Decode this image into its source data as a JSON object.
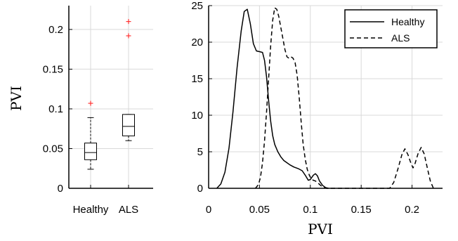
{
  "chart_data": [
    {
      "type": "box",
      "ylabel": "PVI",
      "ylim": [
        0,
        0.23
      ],
      "yticks": [
        0,
        0.05,
        0.1,
        0.15,
        0.2
      ],
      "ytick_labels": [
        "0",
        "0.05",
        "0.1",
        "0.15",
        "0.2"
      ],
      "grid": true,
      "outlier_color": "#ff3333",
      "categories": [
        "Healthy",
        "ALS"
      ],
      "boxes": [
        {
          "name": "Healthy",
          "whisker_low": 0.024,
          "q1": 0.036,
          "median": 0.045,
          "q3": 0.057,
          "whisker_high": 0.089,
          "outliers": [
            0.107
          ]
        },
        {
          "name": "ALS",
          "whisker_low": 0.06,
          "q1": 0.066,
          "median": 0.078,
          "q3": 0.093,
          "whisker_high": 0.093,
          "outliers": [
            0.192,
            0.21
          ]
        }
      ]
    },
    {
      "type": "line",
      "xlabel": "PVI",
      "ylabel": "",
      "xlim": [
        0,
        0.23
      ],
      "ylim": [
        0,
        25
      ],
      "xticks": [
        0,
        0.05,
        0.1,
        0.15,
        0.2
      ],
      "xtick_labels": [
        "0",
        "0.05",
        "0.1",
        "0.15",
        "0.2"
      ],
      "yticks": [
        0,
        5,
        10,
        15,
        20,
        25
      ],
      "ytick_labels": [
        "0",
        "5",
        "10",
        "15",
        "20",
        "25"
      ],
      "grid": true,
      "legend_position": "top-right",
      "series": [
        {
          "name": "Healthy",
          "style": "solid",
          "x": [
            0.008,
            0.012,
            0.016,
            0.02,
            0.024,
            0.028,
            0.032,
            0.035,
            0.038,
            0.041,
            0.044,
            0.047,
            0.05,
            0.053,
            0.055,
            0.057,
            0.059,
            0.061,
            0.063,
            0.065,
            0.068,
            0.071,
            0.074,
            0.077,
            0.08,
            0.084,
            0.088,
            0.092,
            0.095,
            0.098,
            0.1,
            0.103,
            0.105,
            0.107,
            0.109,
            0.112,
            0.115,
            0.118
          ],
          "y": [
            0,
            0.6,
            2.2,
            5.5,
            10.5,
            16.5,
            21.5,
            24.2,
            24.5,
            22.5,
            19.8,
            18.8,
            18.7,
            18.6,
            17.5,
            15.2,
            12,
            9.2,
            7.2,
            6,
            5,
            4.3,
            3.8,
            3.5,
            3.2,
            2.9,
            2.7,
            2.4,
            1.8,
            1.1,
            1.2,
            1.8,
            2,
            1.7,
            1,
            0.4,
            0.1,
            0
          ]
        },
        {
          "name": "ALS",
          "style": "dashed",
          "x": [
            0.046,
            0.049,
            0.051,
            0.053,
            0.055,
            0.057,
            0.059,
            0.061,
            0.063,
            0.065,
            0.067,
            0.069,
            0.071,
            0.073,
            0.075,
            0.077,
            0.079,
            0.081,
            0.083,
            0.085,
            0.087,
            0.089,
            0.091,
            0.093,
            0.095,
            0.097,
            0.099,
            0.101,
            0.103,
            0.105,
            0.107,
            0.11,
            0.113,
            0.116,
            0.178,
            0.182,
            0.186,
            0.19,
            0.193,
            0.196,
            0.199,
            0.201,
            0.203,
            0.206,
            0.209,
            0.212,
            0.215,
            0.218,
            0.221
          ],
          "y": [
            0,
            0.5,
            1.5,
            3.5,
            6.5,
            10.5,
            15,
            19.5,
            23,
            24.7,
            24.5,
            23.5,
            22,
            20.5,
            19,
            18,
            17.8,
            18,
            17.8,
            17.2,
            15.5,
            12.5,
            9,
            6,
            4,
            2.6,
            1.8,
            1.3,
            1.1,
            1,
            0.8,
            0.4,
            0.1,
            0,
            0,
            0.8,
            2.6,
            4.6,
            5.4,
            4.6,
            3.4,
            2.8,
            3.4,
            4.8,
            5.6,
            4.7,
            2.8,
            1,
            0
          ]
        }
      ]
    }
  ]
}
